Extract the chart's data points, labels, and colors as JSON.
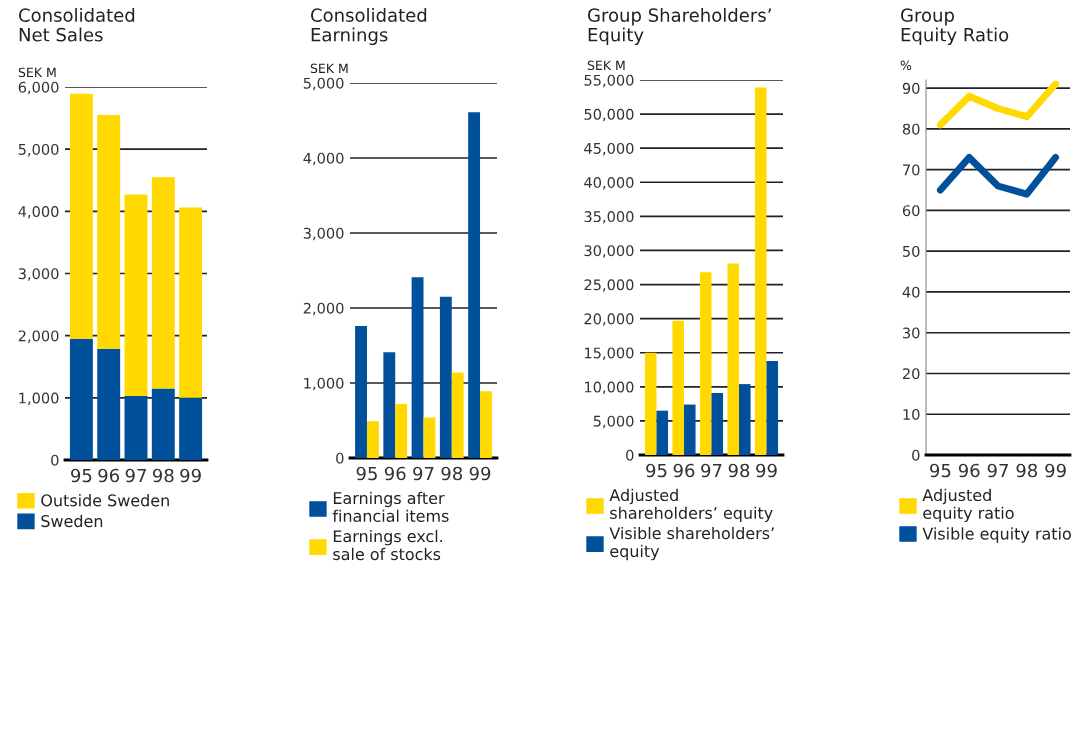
{
  "chart_data": [
    {
      "type": "bar",
      "title": "Consolidated\nNet Sales",
      "ylabel": "SEK M",
      "categories": [
        "95",
        "96",
        "97",
        "98",
        "99"
      ],
      "stacked": true,
      "ylim": [
        0,
        6000
      ],
      "yticks": [
        0,
        {
          "value": 1000,
          "label": "1,000"
        },
        {
          "value": 2000,
          "label": "2,000"
        },
        {
          "value": 3000,
          "label": "3,000"
        },
        {
          "value": 4000,
          "label": "4,000"
        },
        {
          "value": 5000,
          "label": "5,000"
        },
        {
          "value": 6000,
          "label": "6,000"
        }
      ],
      "grid": "y",
      "legend": "bottom",
      "series": [
        {
          "name": "Sweden",
          "color": "#00509b",
          "values": [
            1950,
            1790,
            1030,
            1150,
            1000
          ]
        },
        {
          "name": "Outside Sweden",
          "color": "#ffd900",
          "values": [
            3940,
            3760,
            3240,
            3400,
            3060
          ]
        }
      ]
    },
    {
      "type": "bar",
      "title": "Consolidated\nEarnings",
      "ylabel": "SEK M",
      "categories": [
        "95",
        "96",
        "97",
        "98",
        "99"
      ],
      "ylim": [
        0,
        5000
      ],
      "yticks": [
        0,
        {
          "value": 1000,
          "label": "1,000"
        },
        {
          "value": 2000,
          "label": "2,000"
        },
        {
          "value": 3000,
          "label": "3,000"
        },
        {
          "value": 4000,
          "label": "4,000"
        },
        {
          "value": 5000,
          "label": "5,000"
        }
      ],
      "grid": "y",
      "legend": "bottom",
      "series": [
        {
          "name": "Earnings after\nfinancial items",
          "color": "#00509b",
          "values": [
            1760,
            1410,
            2410,
            2150,
            4610
          ]
        },
        {
          "name": "Earnings excl.\nsale of stocks",
          "color": "#ffd900",
          "values": [
            490,
            720,
            540,
            1140,
            890
          ]
        }
      ]
    },
    {
      "type": "bar",
      "title": "Group Shareholders’\nEquity",
      "ylabel": "SEK M",
      "categories": [
        "95",
        "96",
        "97",
        "98",
        "99"
      ],
      "ylim": [
        0,
        55000
      ],
      "yticks": [
        0,
        {
          "value": 5000,
          "label": "5,000"
        },
        {
          "value": 10000,
          "label": "10,000"
        },
        {
          "value": 15000,
          "label": "15,000"
        },
        {
          "value": 20000,
          "label": "20,000"
        },
        {
          "value": 25000,
          "label": "25,000"
        },
        {
          "value": 30000,
          "label": "30,000"
        },
        {
          "value": 35000,
          "label": "35,000"
        },
        {
          "value": 40000,
          "label": "40,000"
        },
        {
          "value": 45000,
          "label": "45,000"
        },
        {
          "value": 50000,
          "label": "50,000"
        },
        {
          "value": 55000,
          "label": "55,000"
        }
      ],
      "grid": "y",
      "legend": "bottom",
      "series": [
        {
          "name": "Adjusted\nshareholders’ equity",
          "color": "#ffd900",
          "values": [
            15000,
            19700,
            26800,
            28100,
            53900
          ]
        },
        {
          "name": "Visible shareholders’\nequity",
          "color": "#00509b",
          "values": [
            6500,
            7400,
            9100,
            10400,
            13800
          ]
        }
      ]
    },
    {
      "type": "line",
      "title": "Group\nEquity Ratio",
      "ylabel": "%",
      "categories": [
        "95",
        "96",
        "97",
        "98",
        "99"
      ],
      "ylim": [
        0,
        92
      ],
      "yticks": [
        0,
        10,
        20,
        30,
        40,
        50,
        60,
        70,
        80,
        90
      ],
      "grid": "y",
      "legend": "bottom",
      "marker": "none",
      "line_style": "solid",
      "series": [
        {
          "name": "Adjusted\nequity ratio",
          "color": "#ffd900",
          "values": [
            81,
            88,
            85,
            83,
            91
          ]
        },
        {
          "name": "Visible equity ratio",
          "color": "#00509b",
          "values": [
            65,
            73,
            66,
            64,
            73
          ]
        }
      ]
    }
  ]
}
